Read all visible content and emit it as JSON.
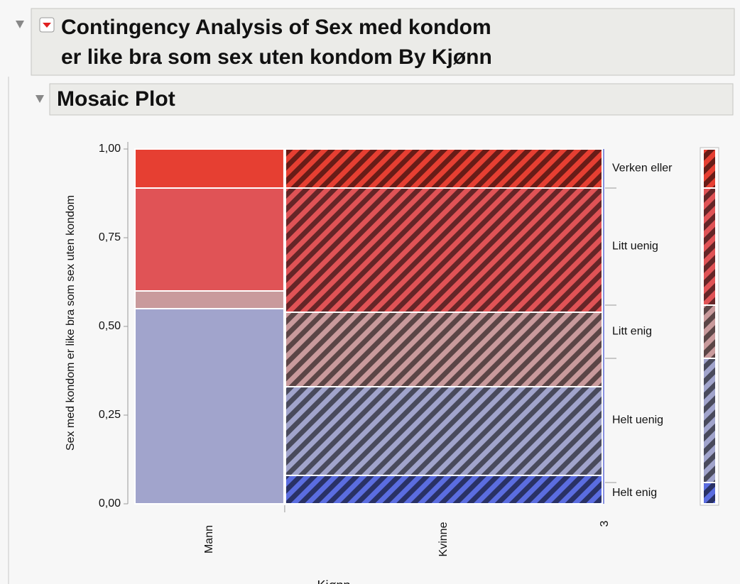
{
  "header": {
    "title_lines": [
      "Contingency Analysis of Sex med kondom",
      "er like bra som sex uten kondom By Kjønn"
    ],
    "subtitle": "Mosaic Plot"
  },
  "chart_data": {
    "type": "mosaic",
    "categories": [
      "Mann",
      "Kvinne"
    ],
    "widths": [
      0.32,
      0.68
    ],
    "hatched": [
      false,
      true
    ],
    "series": [
      {
        "name": "Helt enig",
        "color": "#5b6de0",
        "values": [
          0,
          0.08
        ],
        "margin": 0.06
      },
      {
        "name": "Helt uenig",
        "color": "#a1a4cc",
        "values": [
          0.55,
          0.25
        ],
        "margin": 0.35
      },
      {
        "name": "Litt enig",
        "color": "#c99a9c",
        "values": [
          0.05,
          0.21
        ],
        "margin": 0.15
      },
      {
        "name": "Litt uenig",
        "color": "#e05356",
        "values": [
          0.29,
          0.35
        ],
        "margin": 0.33
      },
      {
        "name": "Verken eller",
        "color": "#e63f32",
        "values": [
          0.11,
          0.11
        ],
        "margin": 0.11
      }
    ],
    "ylim": [
      0,
      1
    ],
    "yticks": [
      {
        "value": 0,
        "label": "0,00"
      },
      {
        "value": 0.25,
        "label": "0,25"
      },
      {
        "value": 0.5,
        "label": "0,50"
      },
      {
        "value": 0.75,
        "label": "0,75"
      },
      {
        "value": 1,
        "label": "1,00"
      }
    ],
    "y_label": "Sex med kondom er like bra som sex uten kondom",
    "x_label": "Kjønn",
    "x_end_label": "3"
  }
}
